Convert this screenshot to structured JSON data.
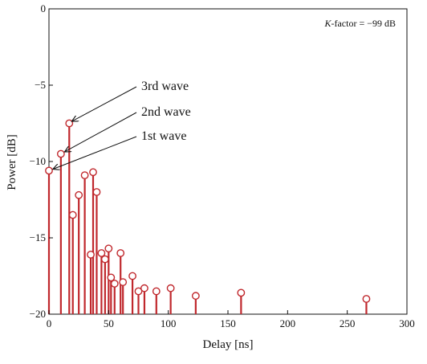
{
  "chart_data": {
    "type": "stem",
    "xlabel": "Delay [ns]",
    "ylabel": "Power [dB]",
    "xlim": [
      0,
      300
    ],
    "ylim": [
      -20,
      0
    ],
    "xticks": [
      0,
      50,
      100,
      150,
      200,
      250,
      300
    ],
    "yticks": [
      0,
      -5,
      -10,
      -15,
      -20
    ],
    "xtick_labels": [
      "0",
      "50",
      "100",
      "150",
      "200",
      "250",
      "300"
    ],
    "ytick_labels": [
      "0",
      "−5",
      "−10",
      "−15",
      "−20"
    ],
    "grid": false,
    "color": "#c0282d",
    "annotation_box": {
      "italic": "K",
      "rest": "-factor = −99 dB"
    },
    "annotations": [
      {
        "label": "3rd wave",
        "x": 16,
        "y": -7.5
      },
      {
        "label": "2nd wave",
        "x": 10,
        "y": -9.5
      },
      {
        "label": "1st wave",
        "x": 0,
        "y": -10.6
      }
    ],
    "points": [
      {
        "x": 0,
        "y": -10.6
      },
      {
        "x": 10,
        "y": -9.5
      },
      {
        "x": 17,
        "y": -7.5
      },
      {
        "x": 20,
        "y": -13.5
      },
      {
        "x": 25,
        "y": -12.2
      },
      {
        "x": 30,
        "y": -10.9
      },
      {
        "x": 35,
        "y": -16.1
      },
      {
        "x": 37,
        "y": -10.7
      },
      {
        "x": 40,
        "y": -12
      },
      {
        "x": 44,
        "y": -16
      },
      {
        "x": 47,
        "y": -16.4
      },
      {
        "x": 50,
        "y": -15.7
      },
      {
        "x": 52,
        "y": -17.6
      },
      {
        "x": 55,
        "y": -18
      },
      {
        "x": 60,
        "y": -16
      },
      {
        "x": 62,
        "y": -17.9
      },
      {
        "x": 70,
        "y": -17.5
      },
      {
        "x": 75,
        "y": -18.5
      },
      {
        "x": 80,
        "y": -18.3
      },
      {
        "x": 90,
        "y": -18.5
      },
      {
        "x": 102,
        "y": -18.3
      },
      {
        "x": 123,
        "y": -18.8
      },
      {
        "x": 161,
        "y": -18.6
      },
      {
        "x": 266,
        "y": -19
      }
    ]
  }
}
